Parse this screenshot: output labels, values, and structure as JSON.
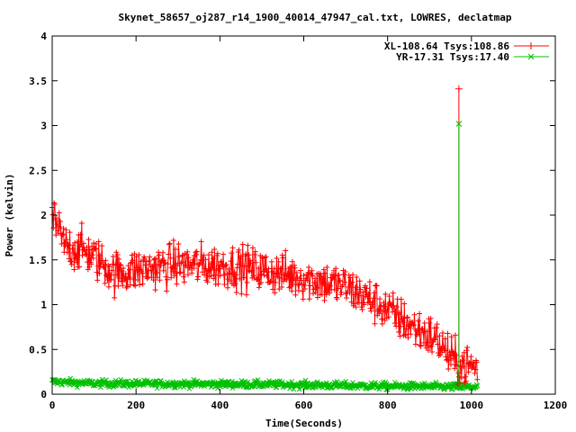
{
  "chart_data": {
    "type": "scatter",
    "title": "Skynet_58657_oj287_r14_1900_40014_47947_cal.txt, LOWRES, declatmap",
    "xlabel": "Time(Seconds)",
    "ylabel": "Power (kelvin)",
    "xlim": [
      0,
      1200
    ],
    "ylim": [
      0,
      4
    ],
    "x_ticks": [
      0,
      200,
      400,
      600,
      800,
      1000,
      1200
    ],
    "y_ticks": [
      0,
      0.5,
      1,
      1.5,
      2,
      2.5,
      3,
      3.5,
      4
    ],
    "x_tick_labels": [
      "0",
      "200",
      "400",
      "600",
      "800",
      "1000",
      "1200"
    ],
    "y_tick_labels": [
      "0",
      "0.5",
      "1",
      "1.5",
      "2",
      "2.5",
      "3",
      "3.5",
      "4"
    ],
    "legend_position": "top-right",
    "grid": false,
    "series": [
      {
        "name": "XL-108.64 Tsys:108.86",
        "color": "#ff0000",
        "marker": "plus",
        "trend": [
          [
            0,
            2.0
          ],
          [
            30,
            1.65
          ],
          [
            80,
            1.6
          ],
          [
            150,
            1.35
          ],
          [
            300,
            1.45
          ],
          [
            450,
            1.42
          ],
          [
            600,
            1.3
          ],
          [
            700,
            1.2
          ],
          [
            780,
            1.0
          ],
          [
            860,
            0.75
          ],
          [
            920,
            0.6
          ],
          [
            960,
            0.35
          ],
          [
            1010,
            0.3
          ]
        ],
        "noise": 0.12,
        "spike": {
          "x": 970,
          "y": 3.41
        }
      },
      {
        "name": "YR-17.31 Tsys:17.40",
        "color": "#00c000",
        "marker": "cross",
        "trend": [
          [
            0,
            0.14
          ],
          [
            100,
            0.12
          ],
          [
            500,
            0.11
          ],
          [
            800,
            0.09
          ],
          [
            1010,
            0.08
          ]
        ],
        "noise": 0.02,
        "spike": {
          "x": 970,
          "y": 3.02
        }
      }
    ],
    "x_range": [
      0,
      1015
    ]
  }
}
